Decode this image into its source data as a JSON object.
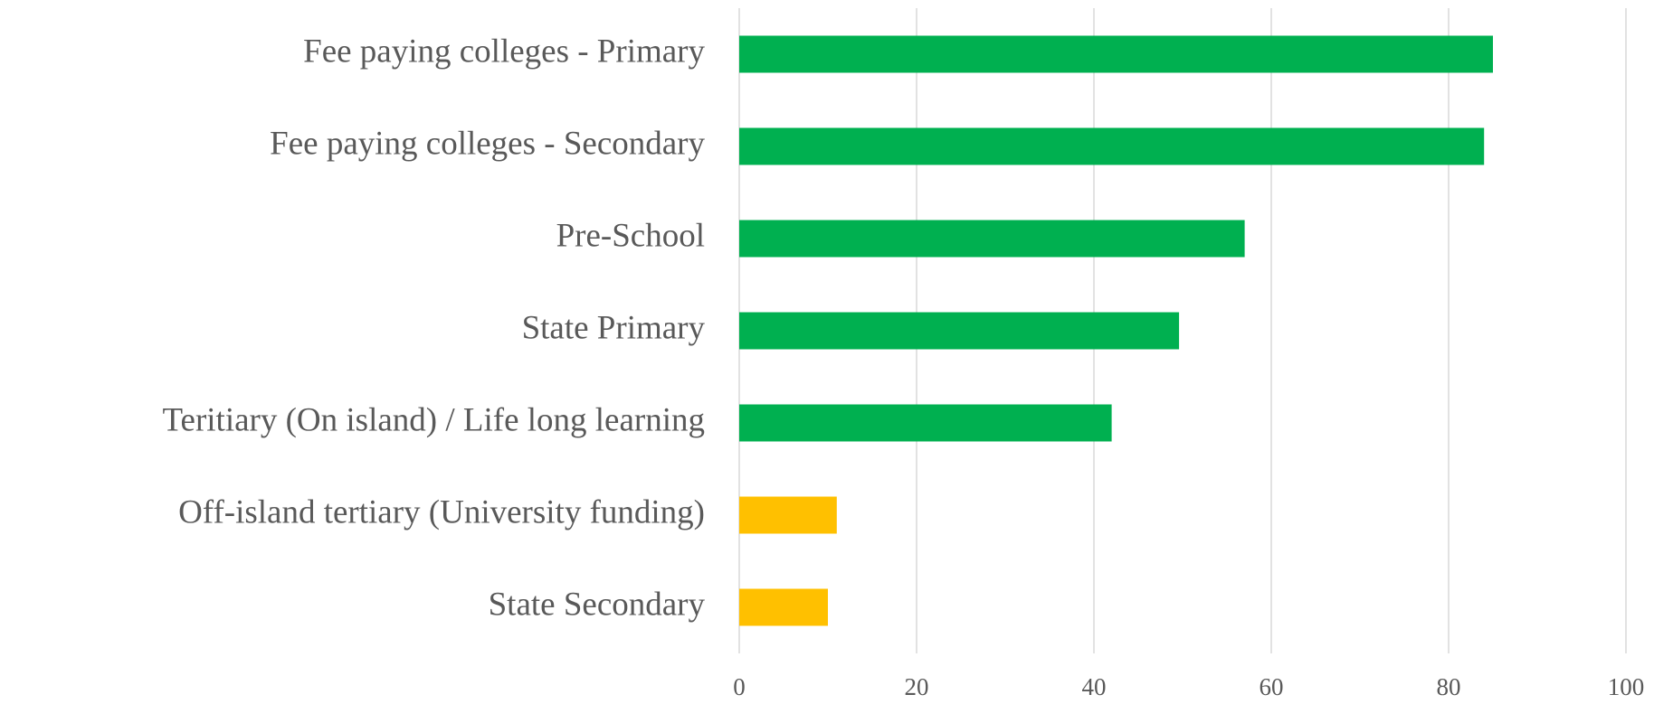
{
  "chart_data": {
    "type": "barh",
    "categories": [
      "Fee paying colleges - Primary",
      "Fee paying colleges - Secondary",
      "Pre-School",
      "State Primary",
      "Teritiary (On island) / Life long learning",
      "Off-island tertiary (University funding)",
      "State Secondary"
    ],
    "values": [
      85,
      84,
      57,
      49.6,
      42,
      11,
      10
    ],
    "colors": [
      "#00b050",
      "#00b050",
      "#00b050",
      "#00b050",
      "#00b050",
      "#ffc000",
      "#ffc000"
    ],
    "xlim": [
      0,
      100
    ],
    "xticks": [
      0,
      20,
      40,
      60,
      80,
      100
    ],
    "grid": true
  }
}
